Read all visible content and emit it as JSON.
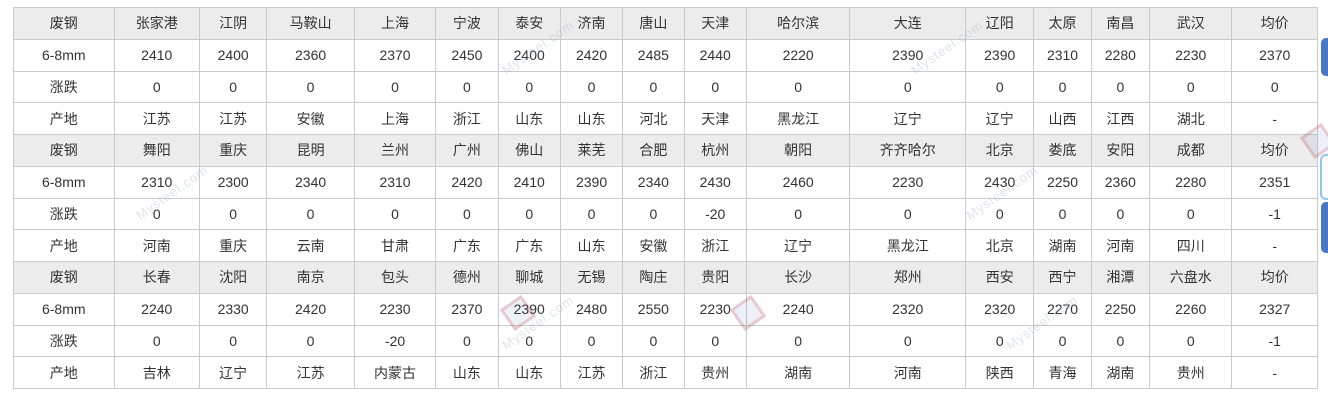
{
  "table": {
    "row_labels": {
      "product": "废钢",
      "size": "6-8mm",
      "change": "涨跌",
      "origin": "产地"
    },
    "sections": [
      {
        "cities": [
          "张家港",
          "江阴",
          "马鞍山",
          "上海",
          "宁波",
          "泰安",
          "济南",
          "唐山",
          "天津",
          "哈尔滨",
          "大连",
          "辽阳",
          "太原",
          "南昌",
          "武汉",
          "均价"
        ],
        "prices": [
          "2410",
          "2400",
          "2360",
          "2370",
          "2450",
          "2400",
          "2420",
          "2485",
          "2440",
          "2220",
          "2390",
          "2390",
          "2310",
          "2280",
          "2230",
          "2370"
        ],
        "changes": [
          "0",
          "0",
          "0",
          "0",
          "0",
          "0",
          "0",
          "0",
          "0",
          "0",
          "0",
          "0",
          "0",
          "0",
          "0",
          "0"
        ],
        "origins": [
          "江苏",
          "江苏",
          "安徽",
          "上海",
          "浙江",
          "山东",
          "山东",
          "河北",
          "天津",
          "黑龙江",
          "辽宁",
          "辽宁",
          "山西",
          "江西",
          "湖北",
          "-"
        ]
      },
      {
        "cities": [
          "舞阳",
          "重庆",
          "昆明",
          "兰州",
          "广州",
          "佛山",
          "莱芜",
          "合肥",
          "杭州",
          "朝阳",
          "齐齐哈尔",
          "北京",
          "娄底",
          "安阳",
          "成都",
          "均价"
        ],
        "prices": [
          "2310",
          "2300",
          "2340",
          "2310",
          "2420",
          "2410",
          "2390",
          "2340",
          "2430",
          "2460",
          "2230",
          "2430",
          "2250",
          "2360",
          "2280",
          "2351"
        ],
        "changes": [
          "0",
          "0",
          "0",
          "0",
          "0",
          "0",
          "0",
          "0",
          "-20",
          "0",
          "0",
          "0",
          "0",
          "0",
          "0",
          "-1"
        ],
        "origins": [
          "河南",
          "重庆",
          "云南",
          "甘肃",
          "广东",
          "广东",
          "山东",
          "安徽",
          "浙江",
          "辽宁",
          "黑龙江",
          "北京",
          "湖南",
          "河南",
          "四川",
          "-"
        ]
      },
      {
        "cities": [
          "长春",
          "沈阳",
          "南京",
          "包头",
          "德州",
          "聊城",
          "无锡",
          "陶庄",
          "贵阳",
          "长沙",
          "郑州",
          "西安",
          "西宁",
          "湘潭",
          "六盘水",
          "均价"
        ],
        "prices": [
          "2240",
          "2330",
          "2420",
          "2230",
          "2370",
          "2390",
          "2480",
          "2550",
          "2230",
          "2240",
          "2320",
          "2320",
          "2270",
          "2250",
          "2260",
          "2327"
        ],
        "changes": [
          "0",
          "0",
          "0",
          "-20",
          "0",
          "0",
          "0",
          "0",
          "0",
          "0",
          "0",
          "0",
          "0",
          "0",
          "0",
          "-1"
        ],
        "origins": [
          "吉林",
          "辽宁",
          "江苏",
          "内蒙古",
          "山东",
          "山东",
          "江苏",
          "浙江",
          "贵州",
          "湖南",
          "河南",
          "陕西",
          "青海",
          "湖南",
          "贵州",
          "-"
        ]
      }
    ]
  },
  "watermark": {
    "text": "Mysteel.com"
  },
  "colors": {
    "header_bg": "#ececec",
    "border": "#cbcbcb",
    "text": "#333333",
    "scrollbar_thumb": "#4a77c4",
    "widget_border": "#8ec6ef"
  }
}
